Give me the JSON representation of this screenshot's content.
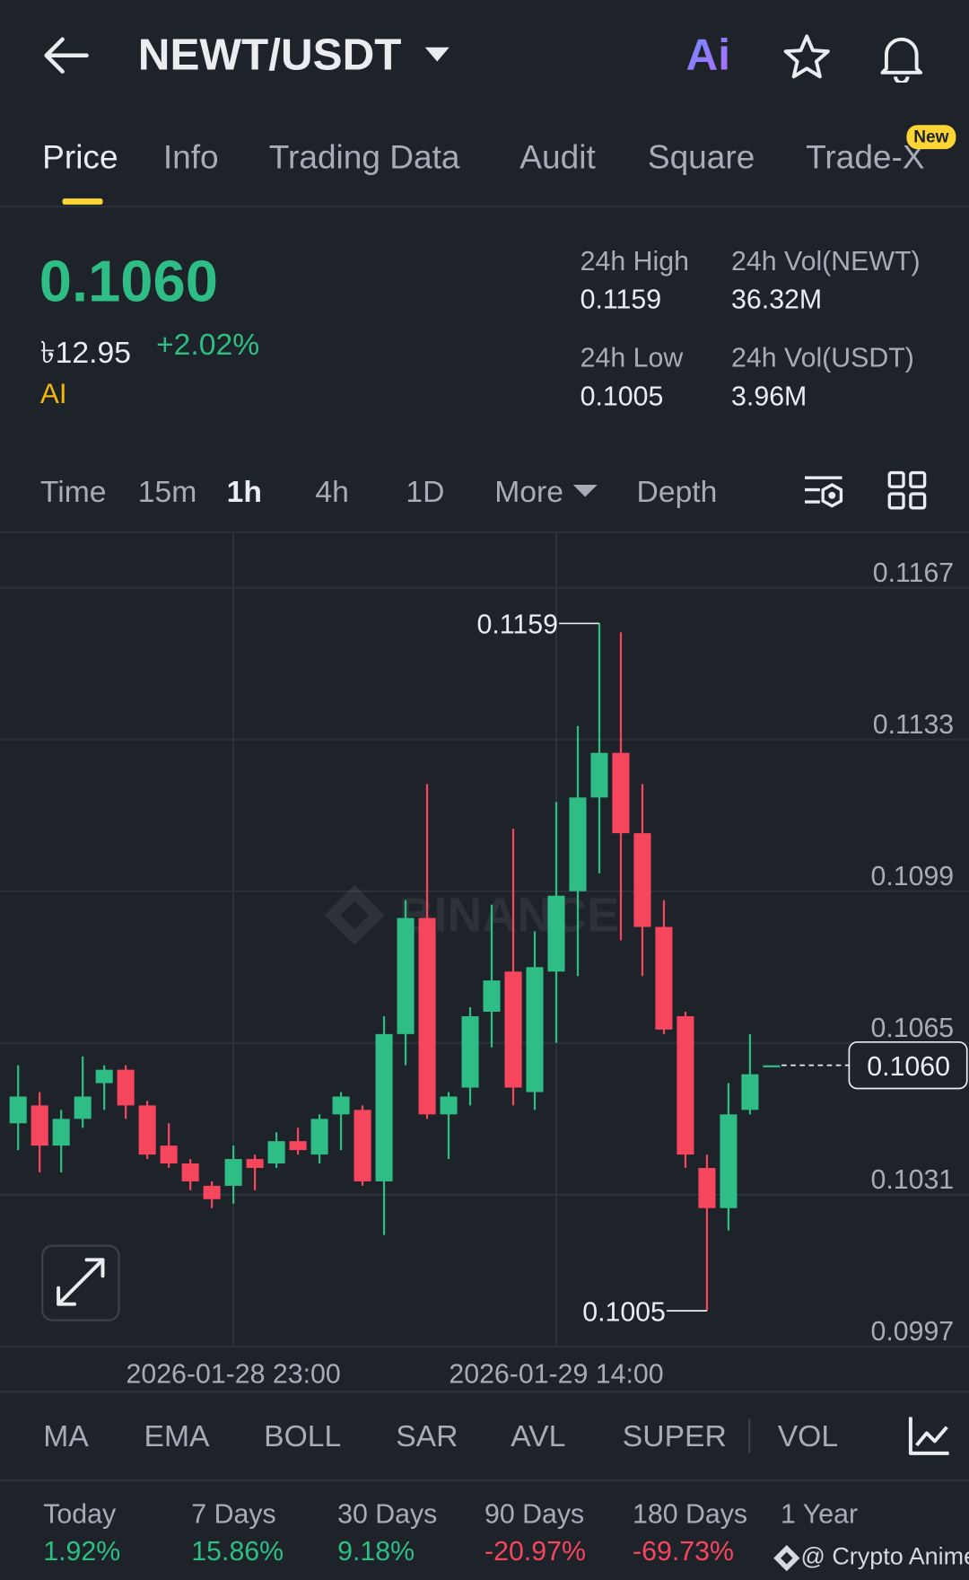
{
  "header": {
    "title": "NEWT/USDT",
    "ai": "Ai"
  },
  "tabs": [
    "Price",
    "Info",
    "Trading Data",
    "Audit",
    "Square",
    "Trade-X"
  ],
  "tab_badge": "New",
  "price": {
    "last": "0.1060",
    "local": "৳12.95",
    "change": "+2.02%",
    "ai": "AI"
  },
  "stats": [
    {
      "label": "24h High",
      "value": "0.1159"
    },
    {
      "label": "24h Vol(NEWT)",
      "value": "36.32M"
    },
    {
      "label": "24h Low",
      "value": "0.1005"
    },
    {
      "label": "24h Vol(USDT)",
      "value": "3.96M"
    }
  ],
  "intervals": [
    "Time",
    "15m",
    "1h",
    "4h",
    "1D",
    "More",
    "Depth"
  ],
  "chart_data": {
    "type": "candlestick",
    "watermark": "BINANCE",
    "x": [
      "2026-01-28 13:00",
      "2026-01-28 14:00",
      "2026-01-28 15:00",
      "2026-01-28 16:00",
      "2026-01-28 17:00",
      "2026-01-28 18:00",
      "2026-01-28 19:00",
      "2026-01-28 20:00",
      "2026-01-28 21:00",
      "2026-01-28 22:00",
      "2026-01-28 23:00",
      "2026-01-29 00:00",
      "2026-01-29 01:00",
      "2026-01-29 02:00",
      "2026-01-29 03:00",
      "2026-01-29 04:00",
      "2026-01-29 05:00",
      "2026-01-29 06:00",
      "2026-01-29 07:00",
      "2026-01-29 08:00",
      "2026-01-29 09:00",
      "2026-01-29 10:00",
      "2026-01-29 11:00",
      "2026-01-29 12:00",
      "2026-01-29 13:00",
      "2026-01-29 14:00",
      "2026-01-29 15:00",
      "2026-01-29 16:00",
      "2026-01-29 17:00",
      "2026-01-29 18:00",
      "2026-01-29 19:00",
      "2026-01-29 20:00",
      "2026-01-29 21:00",
      "2026-01-29 22:00",
      "2026-01-29 23:00",
      "2026-01-30 00:00"
    ],
    "open": [
      0.1047,
      0.1051,
      0.1042,
      0.1048,
      0.1056,
      0.1059,
      0.1051,
      0.1042,
      0.1038,
      0.1033,
      0.1033,
      0.1039,
      0.1038,
      0.1043,
      0.104,
      0.1049,
      0.105,
      0.1034,
      0.1067,
      0.1093,
      0.1049,
      0.1055,
      0.1072,
      0.1081,
      0.1054,
      0.1081,
      0.1099,
      0.112,
      0.113,
      0.1112,
      0.1091,
      0.1071,
      0.1037,
      0.1028,
      0.105,
      0.106
    ],
    "high": [
      0.106,
      0.1054,
      0.105,
      0.1062,
      0.106,
      0.106,
      0.1052,
      0.1047,
      0.1039,
      0.1034,
      0.1042,
      0.104,
      0.1045,
      0.1046,
      0.1049,
      0.1054,
      0.1051,
      0.1071,
      0.1097,
      0.1123,
      0.1054,
      0.1073,
      0.1096,
      0.1113,
      0.109,
      0.1119,
      0.1136,
      0.1159,
      0.1157,
      0.1123,
      0.1097,
      0.1072,
      0.104,
      0.1056,
      0.1067,
      0.106
    ],
    "low": [
      0.1041,
      0.1036,
      0.1036,
      0.1046,
      0.105,
      0.1048,
      0.1039,
      0.1037,
      0.1032,
      0.1028,
      0.1029,
      0.1032,
      0.1037,
      0.104,
      0.1038,
      0.1041,
      0.1033,
      0.1022,
      0.106,
      0.1048,
      0.1039,
      0.1051,
      0.1064,
      0.1051,
      0.105,
      0.1065,
      0.108,
      0.1103,
      0.1088,
      0.108,
      0.1067,
      0.1037,
      0.1005,
      0.1023,
      0.1049,
      0.106
    ],
    "close": [
      0.1053,
      0.1042,
      0.1048,
      0.1053,
      0.1059,
      0.1051,
      0.104,
      0.1038,
      0.1034,
      0.103,
      0.1039,
      0.1037,
      0.1043,
      0.1041,
      0.1048,
      0.1053,
      0.1034,
      0.1067,
      0.1093,
      0.1049,
      0.1053,
      0.1071,
      0.1079,
      0.1055,
      0.1082,
      0.1098,
      0.112,
      0.113,
      0.1112,
      0.1091,
      0.1068,
      0.104,
      0.1028,
      0.1049,
      0.1058,
      0.106
    ],
    "up_color": "#2ebd85",
    "down_color": "#f6465d",
    "ylim": [
      0.0997,
      0.1179
    ],
    "yticks": [
      0.1167,
      0.1133,
      0.1099,
      0.1065,
      0.1031,
      0.0997
    ],
    "xticks": [
      "2026-01-28 23:00",
      "2026-01-29 14:00"
    ],
    "grid": true,
    "annotations": [
      {
        "value": 0.1159,
        "x": "2026-01-29 16:00"
      },
      {
        "value": 0.1005,
        "x": "2026-01-29 21:00"
      }
    ],
    "last_price": {
      "value": 0.106,
      "label": "0.1060"
    }
  },
  "indicators": [
    "MA",
    "EMA",
    "BOLL",
    "SAR",
    "AVL",
    "SUPER",
    "VOL"
  ],
  "performance": [
    {
      "label": "Today",
      "value": "1.92%"
    },
    {
      "label": "7 Days",
      "value": "15.86%"
    },
    {
      "label": "30 Days",
      "value": "9.18%"
    },
    {
      "label": "90 Days",
      "value": "-20.97%"
    },
    {
      "label": "180 Days",
      "value": "-69.73%"
    },
    {
      "label": "1 Year"
    }
  ],
  "credit": "@ Crypto Anime"
}
